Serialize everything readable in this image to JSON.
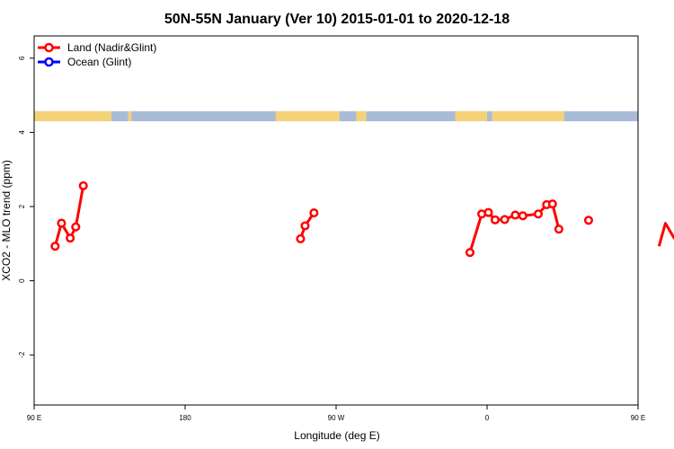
{
  "chart_data": {
    "type": "line",
    "title": "50N-55N January (Ver 10)   2015-01-01 to 2020-12-18",
    "xlabel": "Longitude (deg E)",
    "ylabel": "XCO2 - MLO trend (ppm)",
    "xlim": [
      90,
      450
    ],
    "ylim": [
      -3.35,
      6.6
    ],
    "x_ticks": [
      {
        "value": 90,
        "label": "90 E"
      },
      {
        "value": 180,
        "label": "180"
      },
      {
        "value": 270,
        "label": "90 W"
      },
      {
        "value": 360,
        "label": "0"
      },
      {
        "value": 450,
        "label": "90 E"
      },
      {
        "value": 540,
        "label": "180"
      }
    ],
    "y_ticks": [
      {
        "value": -2,
        "label": "-2"
      },
      {
        "value": 0,
        "label": "0"
      },
      {
        "value": 2,
        "label": "2"
      },
      {
        "value": 4,
        "label": "4"
      },
      {
        "value": 6,
        "label": "6"
      }
    ],
    "legend_position": "top-left",
    "grid": false,
    "series": [
      {
        "name": "Land (Nadir&Glint)",
        "color": "#ff0000",
        "segments": [
          [
            [
              102.5,
              0.93
            ],
            [
              106.3,
              1.55
            ],
            [
              111.5,
              1.15
            ],
            [
              114.8,
              1.45
            ],
            [
              119.3,
              2.56
            ]
          ],
          [
            [
              248.8,
              1.13
            ],
            [
              251.5,
              1.48
            ],
            [
              256.8,
              1.83
            ]
          ],
          [
            [
              349.8,
              0.76
            ],
            [
              356.8,
              1.8
            ],
            [
              360.8,
              1.84
            ],
            [
              364.8,
              1.64
            ],
            [
              370.5,
              1.65
            ],
            [
              376.8,
              1.77
            ],
            [
              381.3,
              1.75
            ],
            [
              390.5,
              1.8
            ],
            [
              395.5,
              2.05
            ],
            [
              399,
              2.07
            ],
            [
              402.8,
              1.39
            ]
          ],
          [
            [
              420.5,
              1.63
            ]
          ],
          [
            [
              462.5,
              0.93
            ],
            [
              466.3,
              1.55
            ],
            [
              471.5,
              1.15
            ],
            [
              474.8,
              1.45
            ],
            [
              479.3,
              2.56
            ]
          ]
        ]
      },
      {
        "name": "Ocean (Glint)",
        "color": "#0000ff",
        "segments": []
      }
    ],
    "surface_band": {
      "y_range": [
        4.3,
        4.57
      ],
      "land_color": "#f5d27a",
      "ocean_color": "#a8bcd8",
      "land_ranges": [
        [
          90,
          136
        ],
        [
          146,
          148
        ],
        [
          234,
          272
        ],
        [
          282,
          288
        ],
        [
          341,
          360
        ],
        [
          363,
          406
        ],
        [
          489,
          497
        ],
        [
          506,
          512
        ]
      ]
    }
  }
}
